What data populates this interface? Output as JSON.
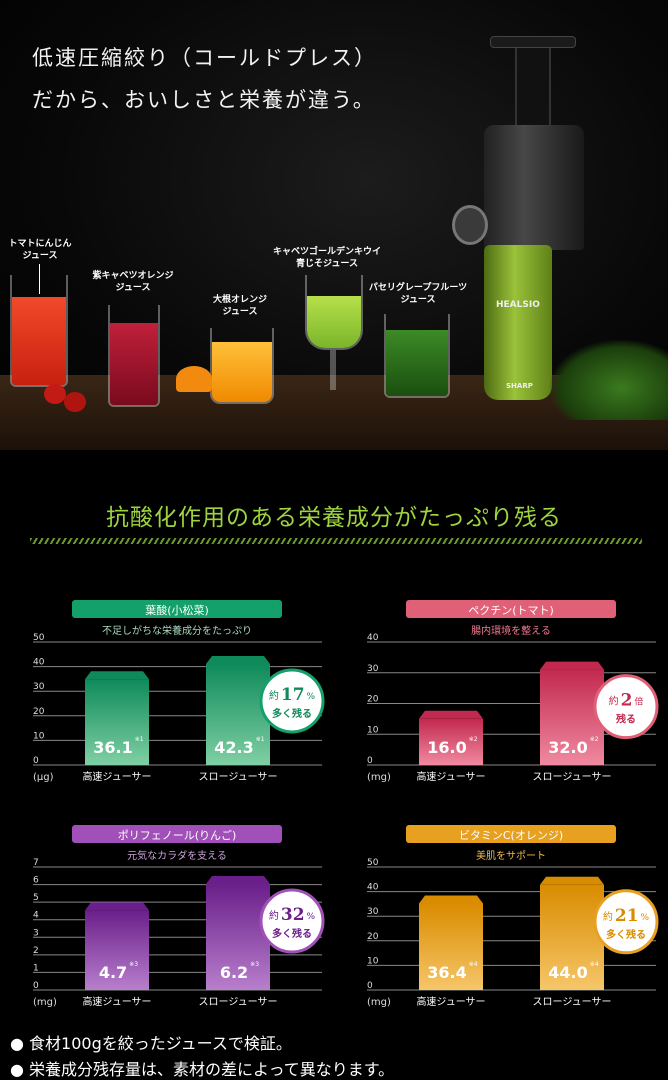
{
  "hero": {
    "headline_line1": "低速圧縮絞り（コールドプレス）",
    "headline_line2": "だから、おいしさと栄養が違う。",
    "juices": [
      {
        "label": "トマトにんじん\nジュース",
        "color": "#e8321e"
      },
      {
        "label": "紫キャベツオレンジ\nジュース",
        "color": "#a3122c"
      },
      {
        "label": "大根オレンジ\nジュース",
        "color": "#f7a11a"
      },
      {
        "label": "キャベツゴールデンキウイ\n青じそジュース",
        "color": "#9fd13a"
      },
      {
        "label": "パセリグレープフルーツ\nジュース",
        "color": "#2f7a1e"
      }
    ],
    "product_logo": "HEALSIO",
    "brand_logo": "SHARP"
  },
  "section_title": "抗酸化作用のある栄養成分がたっぷり残る",
  "chart_data": [
    {
      "type": "bar",
      "title": "葉酸(小松菜)",
      "subtitle": "不足しがちな栄養成分をたっぷり",
      "ylabel": "(μg)",
      "ylim": [
        0,
        50
      ],
      "yticks": [
        0,
        10,
        20,
        30,
        40,
        50
      ],
      "categories": [
        "高速ジューサー",
        "スロージューサー"
      ],
      "values": [
        36.1,
        42.3
      ],
      "value_labels": [
        "36.1",
        "42.3"
      ],
      "footnote": "※1",
      "badge": {
        "prefix": "約",
        "number": "17",
        "unit": "%",
        "line2": "多く残る"
      },
      "color_dark": "#0f8a5a",
      "color_light": "#7fd0a4",
      "accent": "#13a06a",
      "text_color": "#a9d8bd"
    },
    {
      "type": "bar",
      "title": "ペクチン(トマト)",
      "subtitle": "腸内環境を整える",
      "ylabel": "(mg)",
      "ylim": [
        0,
        40
      ],
      "yticks": [
        0,
        10,
        20,
        30,
        40
      ],
      "categories": [
        "高速ジューサー",
        "スロージューサー"
      ],
      "values": [
        16.0,
        32.0
      ],
      "value_labels": [
        "16.0",
        "32.0"
      ],
      "footnote": "※2",
      "badge": {
        "prefix": "約",
        "number": "2",
        "unit": "倍",
        "line2": "残る"
      },
      "color_dark": "#c2294f",
      "color_light": "#f08aa0",
      "accent": "#e06078",
      "text_color": "#f07890"
    },
    {
      "type": "bar",
      "title": "ポリフェノール(りんご)",
      "subtitle": "元気なカラダを支える",
      "ylabel": "(mg)",
      "ylim": [
        0,
        7
      ],
      "yticks": [
        0,
        1,
        2,
        3,
        4,
        5,
        6,
        7
      ],
      "categories": [
        "高速ジューサー",
        "スロージューサー"
      ],
      "values": [
        4.7,
        6.2
      ],
      "value_labels": [
        "4.7",
        "6.2"
      ],
      "footnote": "※3",
      "badge": {
        "prefix": "約",
        "number": "32",
        "unit": "%",
        "line2": "多く残る"
      },
      "color_dark": "#6a1f8a",
      "color_light": "#b87fcc",
      "accent": "#a050b8",
      "text_color": "#c9a3d6"
    },
    {
      "type": "bar",
      "title": "ビタミンC(オレンジ)",
      "subtitle": "美肌をサポート",
      "ylabel": "(mg)",
      "ylim": [
        0,
        50
      ],
      "yticks": [
        0,
        10,
        20,
        30,
        40,
        50
      ],
      "categories": [
        "高速ジューサー",
        "スロージューサー"
      ],
      "values": [
        36.4,
        44.0
      ],
      "value_labels": [
        "36.4",
        "44.0"
      ],
      "footnote": "※4",
      "badge": {
        "prefix": "約",
        "number": "21",
        "unit": "%",
        "line2": "多く残る"
      },
      "color_dark": "#d98c00",
      "color_light": "#f6c66a",
      "accent": "#e8a020",
      "text_color": "#f0b850"
    }
  ],
  "notes": [
    "● 食材100gを絞ったジュースで検証。",
    "● 栄養成分残存量は、素材の差によって異なります。"
  ]
}
